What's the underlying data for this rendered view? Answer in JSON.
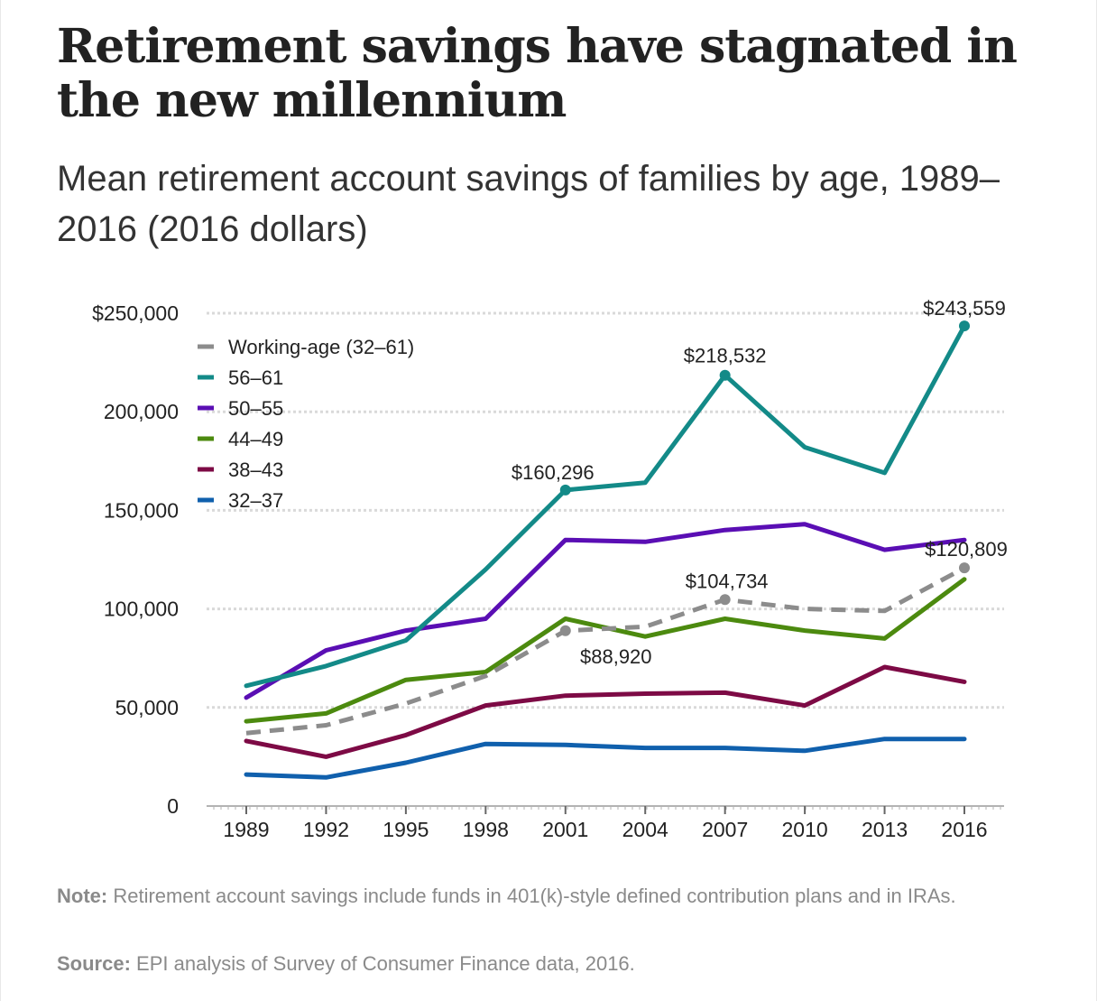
{
  "title": "Retirement savings have stagnated in the new millennium",
  "subtitle": "Mean retirement account savings of families by age, 1989–2016 (2016 dollars)",
  "note_label": "Note:",
  "note_text": " Retirement account savings include funds in 401(k)-style defined contribution plans and in IRAs.",
  "source_label": "Source:",
  "source_text": " EPI analysis of Survey of Consumer Finance data, 2016.",
  "colors": {
    "working_age": "#8c8c8c",
    "age_56_61": "#138a88",
    "age_50_55": "#5a0eb4",
    "age_44_49": "#4c8a0f",
    "age_38_43": "#7d0a45",
    "age_32_37": "#1060ad",
    "grid": "#d9d9d9",
    "axis": "#b3b3b3"
  },
  "chart_data": {
    "type": "line",
    "x": [
      "1989",
      "1992",
      "1995",
      "1998",
      "2001",
      "2004",
      "2007",
      "2010",
      "2013",
      "2016"
    ],
    "ylim": [
      0,
      250000
    ],
    "y_ticks": [
      {
        "value": 0,
        "label": "0"
      },
      {
        "value": 50000,
        "label": "50,000"
      },
      {
        "value": 100000,
        "label": "100,000"
      },
      {
        "value": 150000,
        "label": "150,000"
      },
      {
        "value": 200000,
        "label": "200,000"
      },
      {
        "value": 250000,
        "label": "$250,000"
      }
    ],
    "grid": true,
    "legend_position": "top-left",
    "series": [
      {
        "name": "Working-age (32–61)",
        "color": "#8c8c8c",
        "dashed": true,
        "markers": [
          4,
          6,
          9
        ],
        "values": [
          37000,
          41000,
          52000,
          66000,
          88920,
          91000,
          104734,
          100000,
          99000,
          120809
        ]
      },
      {
        "name": "56–61",
        "color": "#138a88",
        "dashed": false,
        "markers": [
          4,
          6,
          9
        ],
        "values": [
          61000,
          71000,
          84000,
          120000,
          160296,
          164000,
          218532,
          182000,
          169000,
          243559
        ]
      },
      {
        "name": "50–55",
        "color": "#5a0eb4",
        "dashed": false,
        "markers": [],
        "values": [
          55000,
          79000,
          89000,
          95000,
          135000,
          134000,
          140000,
          143000,
          130000,
          135000
        ]
      },
      {
        "name": "44–49",
        "color": "#4c8a0f",
        "dashed": false,
        "markers": [],
        "values": [
          43000,
          47000,
          64000,
          68000,
          95000,
          86000,
          95000,
          89000,
          85000,
          115000
        ]
      },
      {
        "name": "38–43",
        "color": "#7d0a45",
        "dashed": false,
        "markers": [],
        "values": [
          33000,
          25000,
          36000,
          51000,
          56000,
          57000,
          57500,
          51000,
          70500,
          63000
        ]
      },
      {
        "name": "32–37",
        "color": "#1060ad",
        "dashed": false,
        "markers": [],
        "values": [
          16000,
          14500,
          22000,
          31500,
          31000,
          29500,
          29500,
          28000,
          34000,
          34000
        ]
      }
    ],
    "annotations": [
      {
        "series": 1,
        "point": 9,
        "label": "$243,559",
        "anchor": "middle",
        "dx": 0,
        "dy": -12
      },
      {
        "series": 1,
        "point": 6,
        "label": "$218,532",
        "anchor": "middle",
        "dx": 0,
        "dy": -14
      },
      {
        "series": 1,
        "point": 4,
        "label": "$160,296",
        "anchor": "middle",
        "dx": -14,
        "dy": -12
      },
      {
        "series": 0,
        "point": 9,
        "label": "$120,809",
        "anchor": "middle",
        "dx": 2,
        "dy": -13
      },
      {
        "series": 0,
        "point": 6,
        "label": "$104,734",
        "anchor": "middle",
        "dx": 2,
        "dy": -13
      },
      {
        "series": 0,
        "point": 4,
        "label": "$88,920",
        "anchor": "middle",
        "dx": 56,
        "dy": 36
      }
    ]
  }
}
